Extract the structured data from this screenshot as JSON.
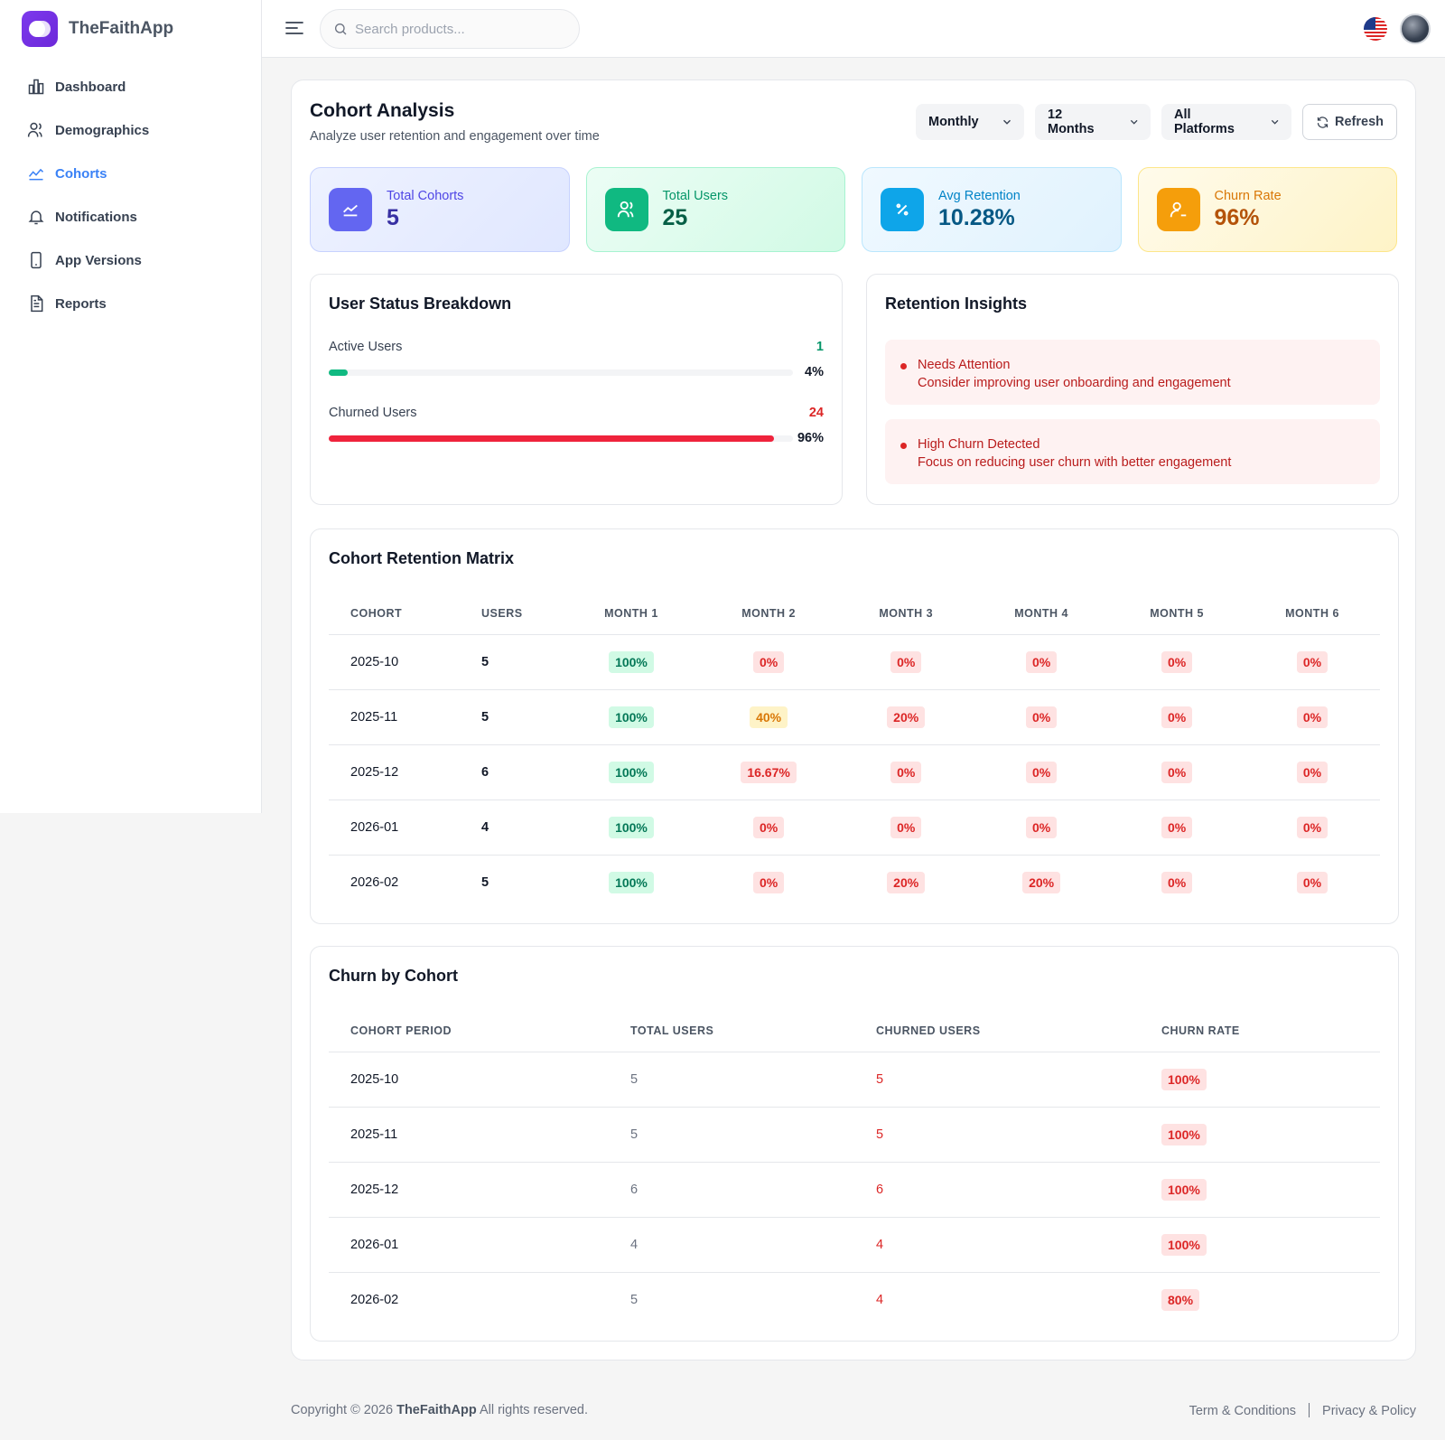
{
  "app": {
    "name": "TheFaithApp"
  },
  "sidebar": {
    "items": [
      {
        "label": "Dashboard",
        "icon": "bar-chart-icon"
      },
      {
        "label": "Demographics",
        "icon": "users-icon"
      },
      {
        "label": "Cohorts",
        "icon": "trend-line-icon",
        "active": true
      },
      {
        "label": "Notifications",
        "icon": "bell-icon"
      },
      {
        "label": "App Versions",
        "icon": "smartphone-icon"
      },
      {
        "label": "Reports",
        "icon": "document-icon"
      }
    ]
  },
  "topbar": {
    "search_placeholder": "Search products...",
    "flag": "us-flag-icon"
  },
  "header": {
    "title": "Cohort Analysis",
    "subtitle": "Analyze user retention and engagement over time",
    "filters": {
      "period": "Monthly",
      "range": "12 Months",
      "platform": "All Platforms"
    },
    "refresh_label": "Refresh"
  },
  "stats": [
    {
      "label": "Total Cohorts",
      "value": "5",
      "icon": "trend-chart-icon"
    },
    {
      "label": "Total Users",
      "value": "25",
      "icon": "users-icon"
    },
    {
      "label": "Avg Retention",
      "value": "10.28%",
      "icon": "percent-icon"
    },
    {
      "label": "Churn Rate",
      "value": "96%",
      "icon": "user-minus-icon"
    }
  ],
  "status_breakdown": {
    "title": "User Status Breakdown",
    "rows": [
      {
        "label": "Active Users",
        "count": "1",
        "percent": "4%",
        "fraction": 0.04,
        "color": "#10b981"
      },
      {
        "label": "Churned Users",
        "count": "24",
        "percent": "96%",
        "fraction": 0.96,
        "color": "#ef233c"
      }
    ]
  },
  "insights": {
    "title": "Retention Insights",
    "items": [
      {
        "title": "Needs Attention",
        "text": "Consider improving user onboarding and engagement"
      },
      {
        "title": "High Churn Detected",
        "text": "Focus on reducing user churn with better engagement"
      }
    ]
  },
  "matrix": {
    "title": "Cohort Retention Matrix",
    "columns": [
      "COHORT",
      "USERS",
      "MONTH 1",
      "MONTH 2",
      "MONTH 3",
      "MONTH 4",
      "MONTH 5",
      "MONTH 6"
    ],
    "rows": [
      {
        "cohort": "2025-10",
        "users": "5",
        "months": [
          "100%",
          "0%",
          "0%",
          "0%",
          "0%",
          "0%"
        ]
      },
      {
        "cohort": "2025-11",
        "users": "5",
        "months": [
          "100%",
          "40%",
          "20%",
          "0%",
          "0%",
          "0%"
        ]
      },
      {
        "cohort": "2025-12",
        "users": "6",
        "months": [
          "100%",
          "16.67%",
          "0%",
          "0%",
          "0%",
          "0%"
        ]
      },
      {
        "cohort": "2026-01",
        "users": "4",
        "months": [
          "100%",
          "0%",
          "0%",
          "0%",
          "0%",
          "0%"
        ]
      },
      {
        "cohort": "2026-02",
        "users": "5",
        "months": [
          "100%",
          "0%",
          "20%",
          "20%",
          "0%",
          "0%"
        ]
      }
    ]
  },
  "churn": {
    "title": "Churn by Cohort",
    "columns": [
      "COHORT PERIOD",
      "TOTAL USERS",
      "CHURNED USERS",
      "CHURN RATE"
    ],
    "rows": [
      {
        "period": "2025-10",
        "total": "5",
        "churned": "5",
        "rate": "100%"
      },
      {
        "period": "2025-11",
        "total": "5",
        "churned": "5",
        "rate": "100%"
      },
      {
        "period": "2025-12",
        "total": "6",
        "churned": "6",
        "rate": "100%"
      },
      {
        "period": "2026-01",
        "total": "4",
        "churned": "4",
        "rate": "100%"
      },
      {
        "period": "2026-02",
        "total": "5",
        "churned": "4",
        "rate": "80%"
      }
    ]
  },
  "footer": {
    "copyright_prefix": "Copyright © 2026",
    "brand": "TheFaithApp",
    "copyright_suffix": "All rights reserved.",
    "links": [
      "Term & Conditions",
      "Privacy & Policy"
    ]
  }
}
